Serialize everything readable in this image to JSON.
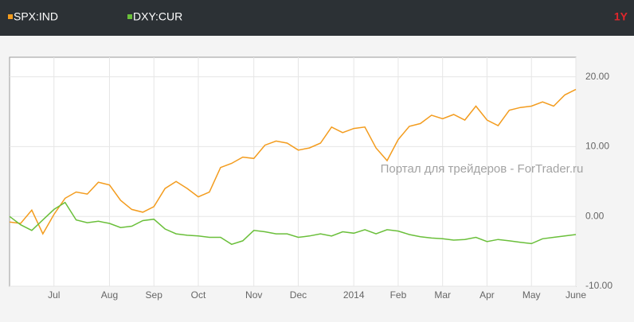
{
  "chart_data": {
    "type": "line",
    "range": "1Y",
    "annotation": "Портал для трейдеров - ForTrader.ru",
    "categories": [
      null,
      null,
      null,
      null,
      "Jul",
      null,
      null,
      null,
      null,
      "Aug",
      null,
      null,
      null,
      "Sep",
      null,
      null,
      null,
      "Oct",
      null,
      null,
      null,
      null,
      "Nov",
      null,
      null,
      null,
      "Dec",
      null,
      null,
      null,
      null,
      "2014",
      null,
      null,
      null,
      "Feb",
      null,
      null,
      null,
      "Mar",
      null,
      null,
      null,
      "Apr",
      null,
      null,
      null,
      "May",
      null,
      null,
      null,
      "June"
    ],
    "series": [
      {
        "name": "SPX:IND",
        "color": "#f39c1e",
        "values": [
          -0.8,
          -1.0,
          0.9,
          -2.5,
          0.3,
          2.6,
          3.5,
          3.2,
          4.9,
          4.5,
          2.3,
          1.0,
          0.6,
          1.4,
          4.0,
          5.0,
          4.0,
          2.8,
          3.5,
          7.0,
          7.6,
          8.5,
          8.3,
          10.2,
          10.8,
          10.5,
          9.5,
          9.8,
          10.5,
          12.8,
          12.0,
          12.6,
          12.8,
          9.8,
          8.0,
          11.0,
          12.9,
          13.3,
          14.5,
          14.0,
          14.6,
          13.8,
          15.8,
          13.8,
          13.0,
          15.2,
          15.6,
          15.8,
          16.4,
          15.8,
          17.4,
          18.2
        ]
      },
      {
        "name": "DXY:CUR",
        "color": "#6abf3a",
        "values": [
          0.0,
          -1.2,
          -2.0,
          -0.5,
          1.0,
          2.0,
          -0.5,
          -0.9,
          -0.7,
          -1.0,
          -1.6,
          -1.4,
          -0.6,
          -0.4,
          -1.8,
          -2.5,
          -2.7,
          -2.8,
          -3.0,
          -3.0,
          -4.0,
          -3.5,
          -2.0,
          -2.2,
          -2.5,
          -2.5,
          -3.0,
          -2.8,
          -2.5,
          -2.8,
          -2.2,
          -2.4,
          -1.9,
          -2.5,
          -1.9,
          -2.1,
          -2.6,
          -2.9,
          -3.1,
          -3.2,
          -3.4,
          -3.3,
          -3.0,
          -3.6,
          -3.3,
          -3.5,
          -3.7,
          -3.9,
          -3.2,
          -3.0,
          -2.8,
          -2.6
        ]
      }
    ],
    "ylim": [
      -10,
      22.8
    ],
    "yticks": [
      {
        "value": 20,
        "label": "20.00"
      },
      {
        "value": 10,
        "label": "10.00"
      },
      {
        "value": 0,
        "label": "0.00"
      },
      {
        "value": -10,
        "label": "-10.00"
      }
    ],
    "grid": true
  }
}
